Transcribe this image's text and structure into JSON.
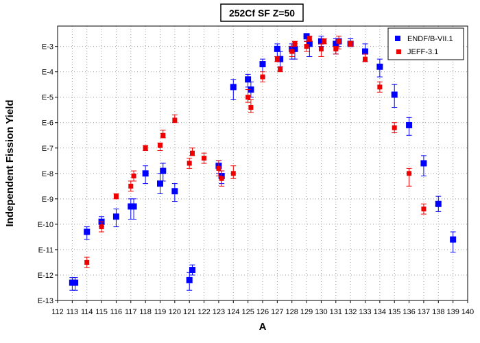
{
  "chart_data": {
    "type": "scatter",
    "title": "252Cf SF Z=50",
    "xlabel": "A",
    "ylabel": "Independent Fission Yield",
    "xlim": [
      112,
      140
    ],
    "ylim": [
      -13,
      -2.2
    ],
    "y_scale": "log10",
    "xticks": [
      "112",
      "113",
      "114",
      "115",
      "116",
      "117",
      "118",
      "119",
      "120",
      "121",
      "122",
      "123",
      "124",
      "125",
      "126",
      "127",
      "128",
      "129",
      "130",
      "131",
      "132",
      "133",
      "134",
      "135",
      "136",
      "137",
      "138",
      "139",
      "140"
    ],
    "yticks": [
      {
        "value": -13,
        "label": "E-13"
      },
      {
        "value": -12,
        "label": "E-12"
      },
      {
        "value": -11,
        "label": "E-11"
      },
      {
        "value": -10,
        "label": "E-10"
      },
      {
        "value": -9,
        "label": "E-9"
      },
      {
        "value": -8,
        "label": "E-8"
      },
      {
        "value": -7,
        "label": "E-7"
      },
      {
        "value": -6,
        "label": "E-6"
      },
      {
        "value": -5,
        "label": "E-5"
      },
      {
        "value": -4,
        "label": "E-4"
      },
      {
        "value": -3,
        "label": "E-3"
      }
    ],
    "grid": true,
    "legend_position": "top-right",
    "series": [
      {
        "name": "ENDF/B-VII.1",
        "color": "#0000ff",
        "marker": "square",
        "points": [
          {
            "x": 113.0,
            "y": -12.3,
            "lo": -12.6,
            "hi": -12.1
          },
          {
            "x": 113.2,
            "y": -12.3,
            "lo": -12.6,
            "hi": -12.1
          },
          {
            "x": 114.0,
            "y": -10.3,
            "lo": -10.6,
            "hi": -10.1
          },
          {
            "x": 115.0,
            "y": -9.9,
            "lo": -10.1,
            "hi": -9.7
          },
          {
            "x": 116.0,
            "y": -9.7,
            "lo": -10.1,
            "hi": -9.4
          },
          {
            "x": 117.0,
            "y": -9.3,
            "lo": -9.8,
            "hi": -9.0
          },
          {
            "x": 117.2,
            "y": -9.3,
            "lo": -9.8,
            "hi": -9.0
          },
          {
            "x": 118.0,
            "y": -8.0,
            "lo": -8.4,
            "hi": -7.7
          },
          {
            "x": 119.0,
            "y": -8.4,
            "lo": -8.8,
            "hi": -8.0
          },
          {
            "x": 119.2,
            "y": -7.9,
            "lo": -8.3,
            "hi": -7.6
          },
          {
            "x": 120.0,
            "y": -8.7,
            "lo": -9.1,
            "hi": -8.4
          },
          {
            "x": 121.0,
            "y": -12.2,
            "lo": -12.6,
            "hi": -11.9
          },
          {
            "x": 121.2,
            "y": -11.8,
            "lo": -12.0,
            "hi": -11.6
          },
          {
            "x": 123.0,
            "y": -7.7,
            "lo": -8.0,
            "hi": -7.5
          },
          {
            "x": 123.2,
            "y": -8.1,
            "lo": -8.4,
            "hi": -7.9
          },
          {
            "x": 124.0,
            "y": -4.6,
            "lo": -5.1,
            "hi": -4.3
          },
          {
            "x": 125.0,
            "y": -4.3,
            "lo": -4.6,
            "hi": -4.1
          },
          {
            "x": 125.2,
            "y": -4.7,
            "lo": -5.0,
            "hi": -4.4
          },
          {
            "x": 126.0,
            "y": -3.7,
            "lo": -4.2,
            "hi": -3.5
          },
          {
            "x": 127.0,
            "y": -3.1,
            "lo": -3.4,
            "hi": -2.9
          },
          {
            "x": 127.2,
            "y": -3.5,
            "lo": -3.8,
            "hi": -3.2
          },
          {
            "x": 128.0,
            "y": -3.1,
            "lo": -3.5,
            "hi": -2.9
          },
          {
            "x": 128.2,
            "y": -3.1,
            "lo": -3.5,
            "hi": -2.9
          },
          {
            "x": 129.0,
            "y": -2.6,
            "lo": -2.8,
            "hi": -2.5
          },
          {
            "x": 129.2,
            "y": -2.9,
            "lo": -3.4,
            "hi": -2.6
          },
          {
            "x": 130.0,
            "y": -2.8,
            "lo": -3.0,
            "hi": -2.6
          },
          {
            "x": 131.0,
            "y": -2.9,
            "lo": -3.3,
            "hi": -2.7
          },
          {
            "x": 131.2,
            "y": -2.8,
            "lo": -3.0,
            "hi": -2.7
          },
          {
            "x": 132.0,
            "y": -2.9,
            "lo": -3.0,
            "hi": -2.7
          },
          {
            "x": 133.0,
            "y": -3.2,
            "lo": -3.6,
            "hi": -2.9
          },
          {
            "x": 134.0,
            "y": -3.8,
            "lo": -4.2,
            "hi": -3.5
          },
          {
            "x": 135.0,
            "y": -4.9,
            "lo": -5.4,
            "hi": -4.5
          },
          {
            "x": 136.0,
            "y": -6.1,
            "lo": -6.5,
            "hi": -5.8
          },
          {
            "x": 137.0,
            "y": -7.6,
            "lo": -8.1,
            "hi": -7.3
          },
          {
            "x": 138.0,
            "y": -9.2,
            "lo": -9.5,
            "hi": -8.9
          },
          {
            "x": 139.0,
            "y": -10.6,
            "lo": -11.1,
            "hi": -10.3
          }
        ]
      },
      {
        "name": "JEFF-3.1",
        "color": "#ee0000",
        "marker": "square",
        "points": [
          {
            "x": 114.0,
            "y": -11.5,
            "lo": -11.7,
            "hi": -11.3
          },
          {
            "x": 115.0,
            "y": -10.1,
            "lo": -10.3,
            "hi": -9.9
          },
          {
            "x": 116.0,
            "y": -8.9,
            "lo": -9.0,
            "hi": -8.8
          },
          {
            "x": 117.0,
            "y": -8.5,
            "lo": -8.7,
            "hi": -8.3
          },
          {
            "x": 117.2,
            "y": -8.1,
            "lo": -8.3,
            "hi": -7.9
          },
          {
            "x": 118.0,
            "y": -7.0,
            "lo": -7.1,
            "hi": -6.9
          },
          {
            "x": 119.0,
            "y": -6.9,
            "lo": -7.1,
            "hi": -6.8
          },
          {
            "x": 119.2,
            "y": -6.5,
            "lo": -6.6,
            "hi": -6.3
          },
          {
            "x": 120.0,
            "y": -5.9,
            "lo": -6.0,
            "hi": -5.7
          },
          {
            "x": 121.0,
            "y": -7.6,
            "lo": -7.8,
            "hi": -7.4
          },
          {
            "x": 121.2,
            "y": -7.2,
            "lo": -7.3,
            "hi": -7.0
          },
          {
            "x": 122.0,
            "y": -7.4,
            "lo": -7.6,
            "hi": -7.2
          },
          {
            "x": 123.0,
            "y": -7.8,
            "lo": -8.1,
            "hi": -7.5
          },
          {
            "x": 123.2,
            "y": -8.2,
            "lo": -8.5,
            "hi": -7.9
          },
          {
            "x": 124.0,
            "y": -8.0,
            "lo": -8.2,
            "hi": -7.7
          },
          {
            "x": 125.0,
            "y": -5.0,
            "lo": -5.2,
            "hi": -4.7
          },
          {
            "x": 125.2,
            "y": -5.4,
            "lo": -5.6,
            "hi": -5.1
          },
          {
            "x": 126.0,
            "y": -4.2,
            "lo": -4.4,
            "hi": -4.0
          },
          {
            "x": 127.0,
            "y": -3.5,
            "lo": -3.6,
            "hi": -3.4
          },
          {
            "x": 127.2,
            "y": -3.9,
            "lo": -4.0,
            "hi": -3.8
          },
          {
            "x": 128.0,
            "y": -3.2,
            "lo": -3.4,
            "hi": -3.0
          },
          {
            "x": 128.2,
            "y": -2.9,
            "lo": -3.0,
            "hi": -2.8
          },
          {
            "x": 129.0,
            "y": -3.0,
            "lo": -3.2,
            "hi": -2.8
          },
          {
            "x": 129.2,
            "y": -2.7,
            "lo": -2.8,
            "hi": -2.6
          },
          {
            "x": 130.0,
            "y": -3.1,
            "lo": -3.4,
            "hi": -2.9
          },
          {
            "x": 130.2,
            "y": -2.8,
            "lo": -2.9,
            "hi": -2.7
          },
          {
            "x": 131.0,
            "y": -3.1,
            "lo": -3.3,
            "hi": -3.0
          },
          {
            "x": 131.2,
            "y": -2.8,
            "lo": -3.1,
            "hi": -2.6
          },
          {
            "x": 132.0,
            "y": -2.9,
            "lo": -3.0,
            "hi": -2.8
          },
          {
            "x": 133.0,
            "y": -3.5,
            "lo": -3.6,
            "hi": -3.3
          },
          {
            "x": 134.0,
            "y": -4.6,
            "lo": -4.8,
            "hi": -4.4
          },
          {
            "x": 135.0,
            "y": -6.2,
            "lo": -6.4,
            "hi": -6.0
          },
          {
            "x": 136.0,
            "y": -8.0,
            "lo": -8.5,
            "hi": -7.8
          },
          {
            "x": 137.0,
            "y": -9.4,
            "lo": -9.6,
            "hi": -9.2
          }
        ]
      }
    ]
  }
}
